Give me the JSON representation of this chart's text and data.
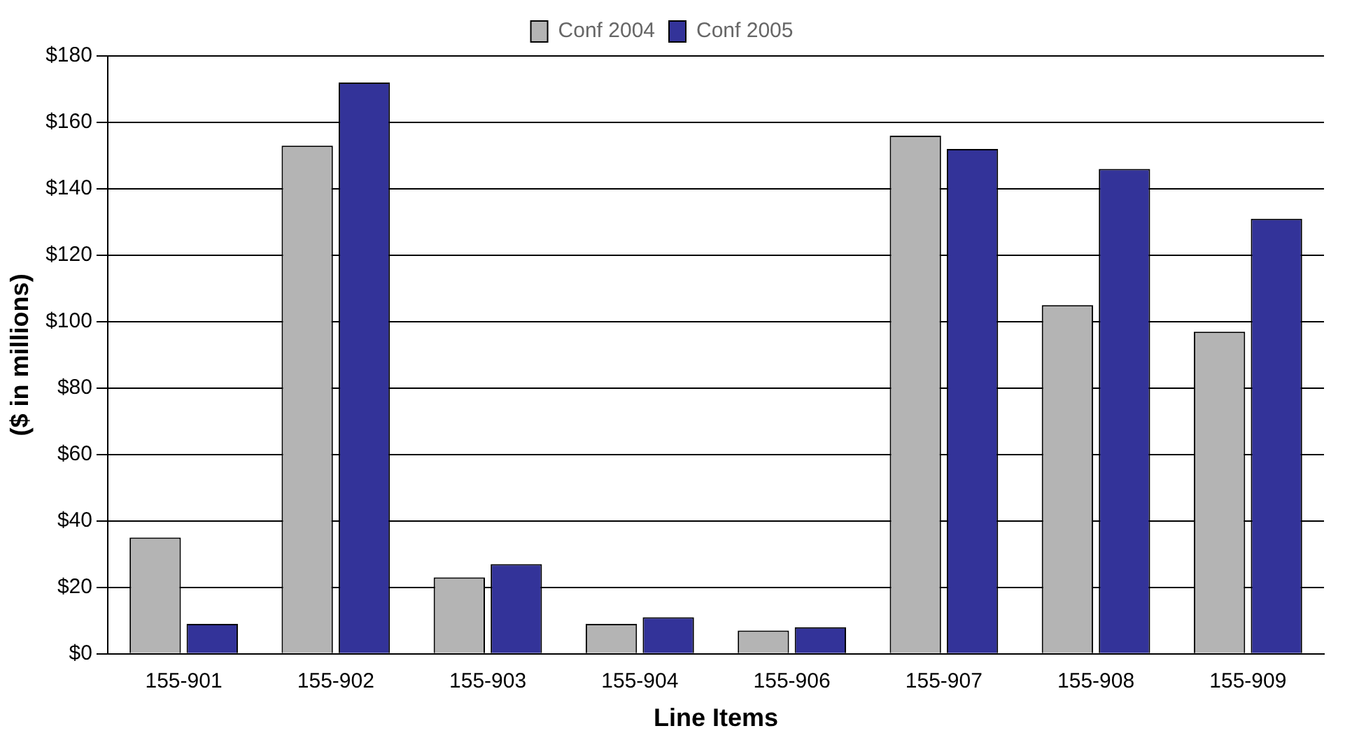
{
  "chart_data": {
    "type": "bar",
    "xlabel": "Line Items",
    "ylabel": "($ in millions)",
    "categories": [
      "155-901",
      "155-902",
      "155-903",
      "155-904",
      "155-906",
      "155-907",
      "155-908",
      "155-909"
    ],
    "series": [
      {
        "name": "Conf 2004",
        "color": "#b4b4b4",
        "values": [
          35,
          153,
          23,
          9,
          7,
          156,
          105,
          97
        ]
      },
      {
        "name": "Conf 2005",
        "color": "#333399",
        "values": [
          9,
          172,
          27,
          11,
          8,
          152,
          146,
          131
        ]
      }
    ],
    "ylim": [
      0,
      180
    ],
    "yticks": [
      {
        "value": 0,
        "label": "$0"
      },
      {
        "value": 20,
        "label": "$20"
      },
      {
        "value": 40,
        "label": "$40"
      },
      {
        "value": 60,
        "label": "$60"
      },
      {
        "value": 80,
        "label": "$80"
      },
      {
        "value": 100,
        "label": "$100"
      },
      {
        "value": 120,
        "label": "$120"
      },
      {
        "value": 140,
        "label": "$140"
      },
      {
        "value": 160,
        "label": "$160"
      },
      {
        "value": 180,
        "label": "$180"
      }
    ],
    "grid": "y",
    "legend": "top"
  }
}
